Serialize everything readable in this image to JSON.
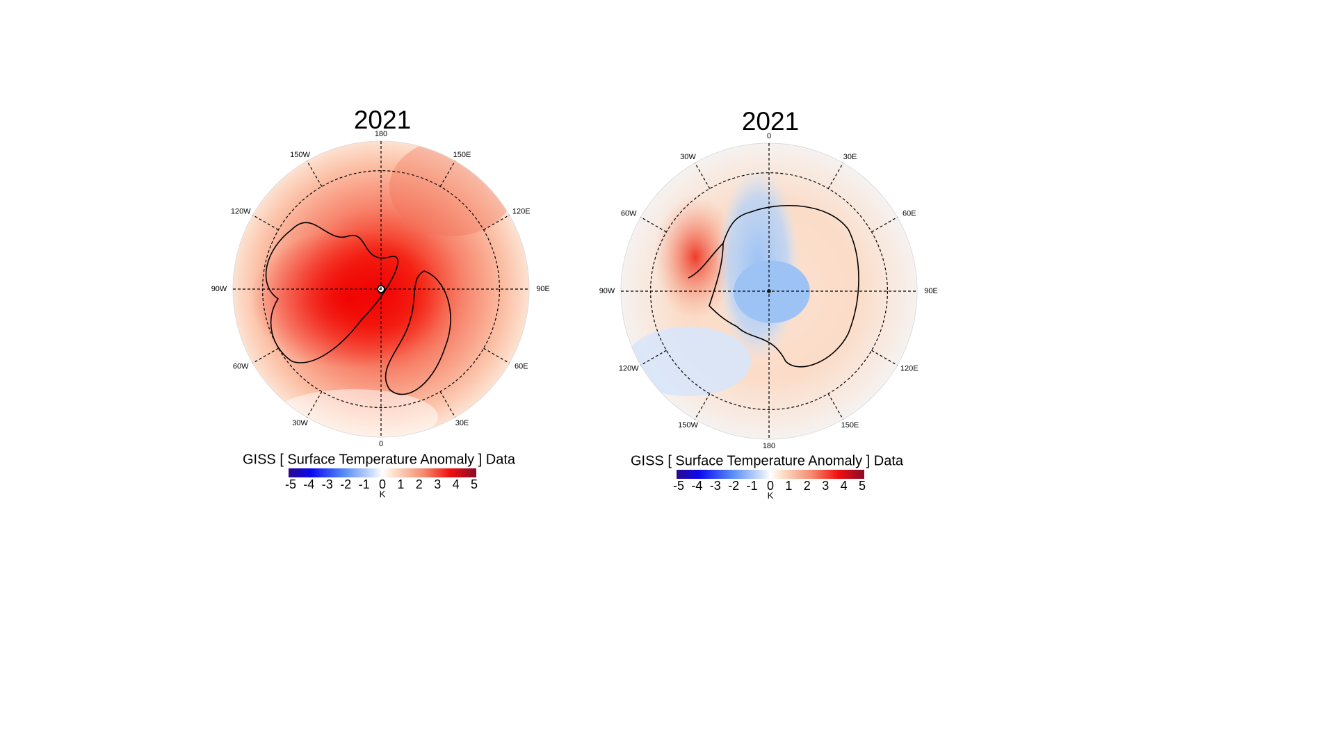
{
  "maps": [
    {
      "title": "2021",
      "lon_labels": [
        "180",
        "150E",
        "120E",
        "90E",
        "60E",
        "30E",
        "0",
        "30W",
        "60W",
        "90W",
        "120W",
        "150W"
      ],
      "colorbar": {
        "title": "GISS [ Surface Temperature Anomaly ] Data",
        "ticks": [
          "-5",
          "-4",
          "-3",
          "-2",
          "-1",
          "0",
          "1",
          "2",
          "3",
          "4",
          "5"
        ],
        "unit": "K"
      }
    },
    {
      "title": "2021",
      "lon_labels": [
        "0",
        "30E",
        "60E",
        "90E",
        "120E",
        "150E",
        "180",
        "150W",
        "120W",
        "90W",
        "60W",
        "30W"
      ],
      "colorbar": {
        "title": "GISS [ Surface Temperature Anomaly ] Data",
        "ticks": [
          "-5",
          "-4",
          "-3",
          "-2",
          "-1",
          "0",
          "1",
          "2",
          "3",
          "4",
          "5"
        ],
        "unit": "K"
      }
    }
  ]
}
